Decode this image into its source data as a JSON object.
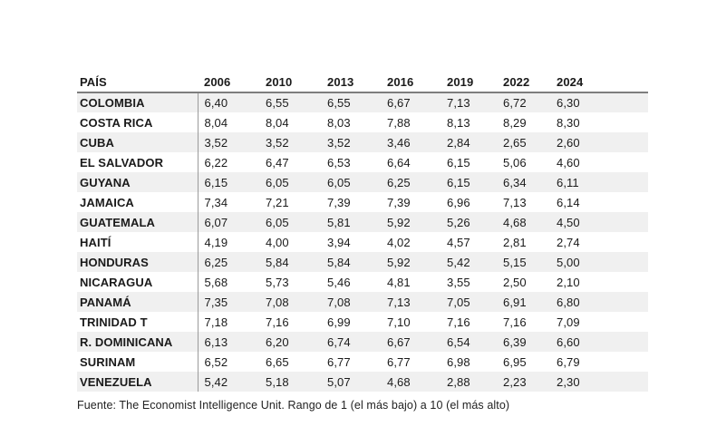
{
  "table": {
    "columns": [
      "PAÍS",
      "2006",
      "2010",
      "2013",
      "2016",
      "2019",
      "2022",
      "2024"
    ],
    "rows": [
      {
        "country": "COLOMBIA",
        "values": [
          "6,40",
          "6,55",
          "6,55",
          "6,67",
          "7,13",
          "6,72",
          "6,30"
        ]
      },
      {
        "country": "COSTA RICA",
        "values": [
          "8,04",
          "8,04",
          "8,03",
          "7,88",
          "8,13",
          "8,29",
          "8,30"
        ]
      },
      {
        "country": "CUBA",
        "values": [
          "3,52",
          "3,52",
          "3,52",
          "3,46",
          "2,84",
          "2,65",
          "2,60"
        ]
      },
      {
        "country": "EL SALVADOR",
        "values": [
          "6,22",
          "6,47",
          "6,53",
          "6,64",
          "6,15",
          "5,06",
          "4,60"
        ]
      },
      {
        "country": "GUYANA",
        "values": [
          "6,15",
          "6,05",
          "6,05",
          "6,25",
          "6,15",
          "6,34",
          "6,11"
        ]
      },
      {
        "country": "JAMAICA",
        "values": [
          "7,34",
          "7,21",
          "7,39",
          "7,39",
          "6,96",
          "7,13",
          "6,14"
        ]
      },
      {
        "country": "GUATEMALA",
        "values": [
          "6,07",
          "6,05",
          "5,81",
          "5,92",
          "5,26",
          "4,68",
          "4,50"
        ]
      },
      {
        "country": "HAITÍ",
        "values": [
          "4,19",
          "4,00",
          "3,94",
          "4,02",
          "4,57",
          "2,81",
          "2,74"
        ]
      },
      {
        "country": "HONDURAS",
        "values": [
          "6,25",
          "5,84",
          "5,84",
          "5,92",
          "5,42",
          "5,15",
          "5,00"
        ]
      },
      {
        "country": "NICARAGUA",
        "values": [
          "5,68",
          "5,73",
          "5,46",
          "4,81",
          "3,55",
          "2,50",
          "2,10"
        ]
      },
      {
        "country": "PANAMÁ",
        "values": [
          "7,35",
          "7,08",
          "7,08",
          "7,13",
          "7,05",
          "6,91",
          "6,80"
        ]
      },
      {
        "country": "TRINIDAD T",
        "values": [
          "7,18",
          "7,16",
          "6,99",
          "7,10",
          "7,16",
          "7,16",
          "7,09"
        ]
      },
      {
        "country": "R. DOMINICANA",
        "values": [
          "6,13",
          "6,20",
          "6,74",
          "6,67",
          "6,54",
          "6,39",
          "6,60"
        ]
      },
      {
        "country": "SURINAM",
        "values": [
          "6,52",
          "6,65",
          "6,77",
          "6,77",
          "6,98",
          "6,95",
          "6,79"
        ]
      },
      {
        "country": "VENEZUELA",
        "values": [
          "5,42",
          "5,18",
          "5,07",
          "4,68",
          "2,88",
          "2,23",
          "2,30"
        ]
      }
    ]
  },
  "footer": {
    "source": "Fuente: The Economist Intelligence Unit. Rango de 1 (el más bajo) a 10 (el más alto)"
  },
  "colors": {
    "row_stripe": "#f0f0f0",
    "header_rule": "#7d7d7d",
    "column_divider": "#9b9b9b",
    "text": "#1a1a1a",
    "background": "#ffffff"
  },
  "chart_data": {
    "type": "table",
    "categories": [
      "2006",
      "2010",
      "2013",
      "2016",
      "2019",
      "2022",
      "2024"
    ],
    "series": [
      {
        "name": "COLOMBIA",
        "values": [
          6.4,
          6.55,
          6.55,
          6.67,
          7.13,
          6.72,
          6.3
        ]
      },
      {
        "name": "COSTA RICA",
        "values": [
          8.04,
          8.04,
          8.03,
          7.88,
          8.13,
          8.29,
          8.3
        ]
      },
      {
        "name": "CUBA",
        "values": [
          3.52,
          3.52,
          3.52,
          3.46,
          2.84,
          2.65,
          2.6
        ]
      },
      {
        "name": "EL SALVADOR",
        "values": [
          6.22,
          6.47,
          6.53,
          6.64,
          6.15,
          5.06,
          4.6
        ]
      },
      {
        "name": "GUYANA",
        "values": [
          6.15,
          6.05,
          6.05,
          6.25,
          6.15,
          6.34,
          6.11
        ]
      },
      {
        "name": "JAMAICA",
        "values": [
          7.34,
          7.21,
          7.39,
          7.39,
          6.96,
          7.13,
          6.14
        ]
      },
      {
        "name": "GUATEMALA",
        "values": [
          6.07,
          6.05,
          5.81,
          5.92,
          5.26,
          4.68,
          4.5
        ]
      },
      {
        "name": "HAITÍ",
        "values": [
          4.19,
          4.0,
          3.94,
          4.02,
          4.57,
          2.81,
          2.74
        ]
      },
      {
        "name": "HONDURAS",
        "values": [
          6.25,
          5.84,
          5.84,
          5.92,
          5.42,
          5.15,
          5.0
        ]
      },
      {
        "name": "NICARAGUA",
        "values": [
          5.68,
          5.73,
          5.46,
          4.81,
          3.55,
          2.5,
          2.1
        ]
      },
      {
        "name": "PANAMÁ",
        "values": [
          7.35,
          7.08,
          7.08,
          7.13,
          7.05,
          6.91,
          6.8
        ]
      },
      {
        "name": "TRINIDAD T",
        "values": [
          7.18,
          7.16,
          6.99,
          7.1,
          7.16,
          7.16,
          7.09
        ]
      },
      {
        "name": "R. DOMINICANA",
        "values": [
          6.13,
          6.2,
          6.74,
          6.67,
          6.54,
          6.39,
          6.6
        ]
      },
      {
        "name": "SURINAM",
        "values": [
          6.52,
          6.65,
          6.77,
          6.77,
          6.98,
          6.95,
          6.79
        ]
      },
      {
        "name": "VENEZUELA",
        "values": [
          5.42,
          5.18,
          5.07,
          4.68,
          2.88,
          2.23,
          2.3
        ]
      }
    ],
    "value_range": [
      1,
      10
    ],
    "note": "Fuente: The Economist Intelligence Unit. Rango de 1 (el más bajo) a 10 (el más alto)"
  }
}
